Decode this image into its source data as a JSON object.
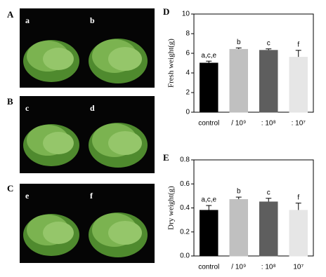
{
  "photo_panels": [
    {
      "label": "A",
      "left": "a",
      "right": "b"
    },
    {
      "label": "B",
      "left": "c",
      "right": "d"
    },
    {
      "label": "C",
      "left": "e",
      "right": "f"
    }
  ],
  "chart_data": [
    {
      "type": "bar",
      "panel_label": "D",
      "y_label": "Fresh weight(g)",
      "categories": [
        "control",
        "/ 10⁹",
        ": 10⁸",
        ": 10⁷"
      ],
      "values": [
        5.0,
        6.4,
        6.3,
        5.6
      ],
      "errors": [
        0.2,
        0.15,
        0.15,
        0.7
      ],
      "annotations": [
        "a,c,e",
        "b",
        "c",
        "f"
      ],
      "colors": [
        "#000000",
        "#c0c0c0",
        "#5e5e5e",
        "#e6e6e6"
      ],
      "ylim": [
        0,
        10
      ],
      "yticks": [
        0,
        2,
        4,
        6,
        8,
        10
      ]
    },
    {
      "type": "bar",
      "panel_label": "E",
      "y_label": "Dry weight(g)",
      "categories": [
        "control",
        "/ 10⁹",
        ": 10⁸",
        "10⁷"
      ],
      "values": [
        0.38,
        0.47,
        0.45,
        0.38
      ],
      "errors": [
        0.04,
        0.02,
        0.03,
        0.06
      ],
      "annotations": [
        "a,c,e",
        "b",
        "c",
        "f"
      ],
      "colors": [
        "#000000",
        "#c0c0c0",
        "#5e5e5e",
        "#e6e6e6"
      ],
      "ylim": [
        0,
        0.8
      ],
      "yticks": [
        {
          "value": 0,
          "label": "0.0"
        },
        0.2,
        0.4,
        0.6,
        0.8
      ]
    }
  ]
}
